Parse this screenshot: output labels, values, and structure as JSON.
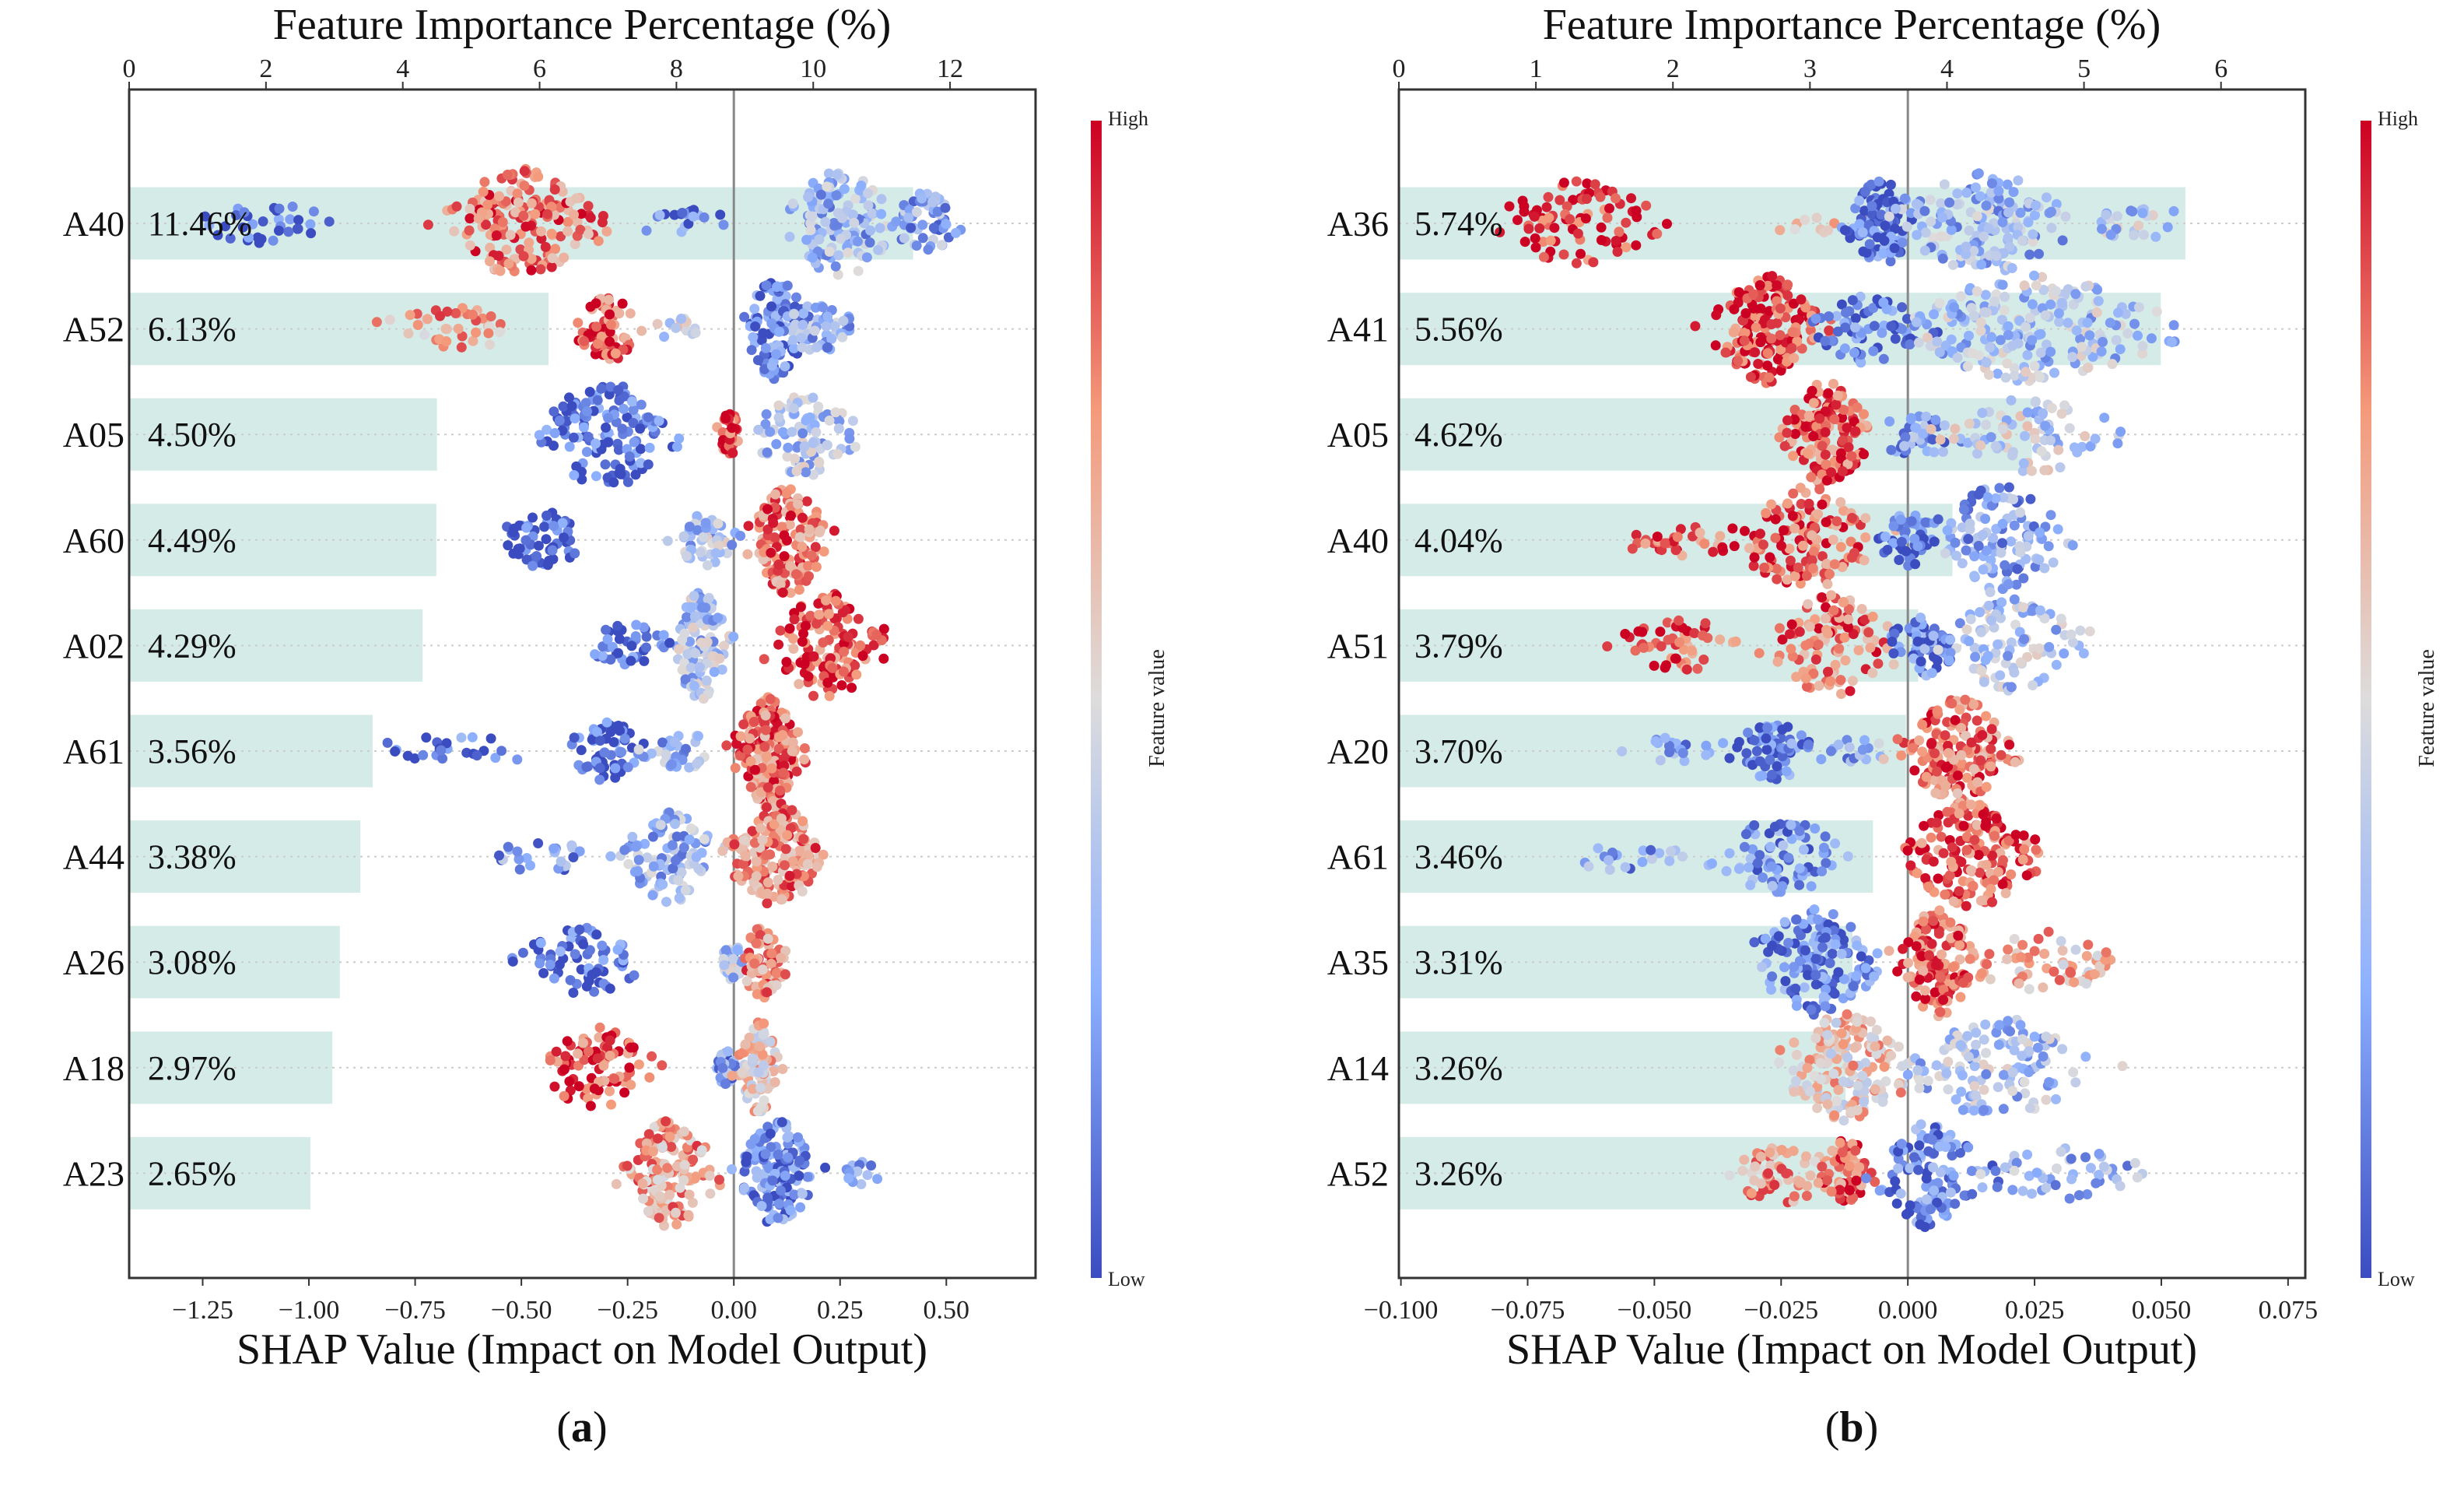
{
  "colors": {
    "bar": "#d5ebe7",
    "low": "#3b4cc0",
    "mid": "#dddcdc",
    "high": "#cc0022",
    "zero_line": "#888888",
    "axis": "#333333"
  },
  "chart_data": [
    {
      "type": "scatter",
      "subtype": "shap-beeswarm-with-importance-bars",
      "panel_label": [
        "(",
        "a",
        ")"
      ],
      "title_top": "Feature Importance Percentage (%)",
      "xlabel": "SHAP Value (Impact on Model Output)",
      "xlim": [
        -1.423,
        0.71
      ],
      "xticks": [
        -1.25,
        -1.0,
        -0.75,
        -0.5,
        -0.25,
        0.0,
        0.25,
        0.5
      ],
      "xtick_labels": [
        "−1.25",
        "−1.00",
        "−0.75",
        "−0.50",
        "−0.25",
        "0.00",
        "0.25",
        "0.50"
      ],
      "top_xlim": [
        0,
        13.25
      ],
      "top_xticks": [
        0,
        2,
        4,
        6,
        8,
        10,
        12
      ],
      "top_xtick_labels": [
        "0",
        "2",
        "4",
        "6",
        "8",
        "10",
        "12"
      ],
      "colorbar": {
        "label": "Feature value",
        "high": "High",
        "low": "Low"
      },
      "features": [
        {
          "name": "A40",
          "importance": 11.46,
          "importance_label": "11.46%",
          "clusters": [
            [
              -1.1,
              0.14,
              35,
              0.05
            ],
            [
              -0.5,
              0.14,
              180,
              0.8
            ],
            [
              -0.12,
              0.08,
              20,
              0.1
            ],
            [
              0.25,
              0.1,
              130,
              0.3
            ],
            [
              0.45,
              0.07,
              60,
              0.25
            ]
          ]
        },
        {
          "name": "A52",
          "importance": 6.13,
          "importance_label": "6.13%",
          "clusters": [
            [
              -0.65,
              0.12,
              40,
              0.7
            ],
            [
              -0.3,
              0.06,
              70,
              0.85
            ],
            [
              -0.12,
              0.04,
              15,
              0.5
            ],
            [
              0.1,
              0.06,
              110,
              0.12
            ],
            [
              0.2,
              0.06,
              50,
              0.3
            ]
          ]
        },
        {
          "name": "A05",
          "importance": 4.5,
          "importance_label": "4.50%",
          "clusters": [
            [
              -0.3,
              0.12,
              130,
              0.08
            ],
            [
              -0.01,
              0.02,
              40,
              0.85
            ],
            [
              0.17,
              0.09,
              90,
              0.35
            ]
          ]
        },
        {
          "name": "A60",
          "importance": 4.49,
          "importance_label": "4.49%",
          "clusters": [
            [
              -0.45,
              0.07,
              60,
              0.08
            ],
            [
              -0.07,
              0.05,
              50,
              0.35
            ],
            [
              0.13,
              0.07,
              150,
              0.8
            ]
          ]
        },
        {
          "name": "A02",
          "importance": 4.29,
          "importance_label": "4.29%",
          "clusters": [
            [
              -0.25,
              0.07,
              40,
              0.08
            ],
            [
              -0.08,
              0.05,
              120,
              0.35
            ],
            [
              0.22,
              0.1,
              140,
              0.85
            ]
          ]
        },
        {
          "name": "A61",
          "importance": 3.56,
          "importance_label": "3.56%",
          "clusters": [
            [
              -0.65,
              0.12,
              25,
              0.1
            ],
            [
              -0.3,
              0.07,
              60,
              0.08
            ],
            [
              -0.12,
              0.06,
              30,
              0.3
            ],
            [
              0.08,
              0.06,
              180,
              0.8
            ]
          ]
        },
        {
          "name": "A44",
          "importance": 3.38,
          "importance_label": "3.38%",
          "clusters": [
            [
              -0.45,
              0.1,
              25,
              0.2
            ],
            [
              -0.15,
              0.08,
              100,
              0.3
            ],
            [
              0.1,
              0.08,
              170,
              0.75
            ]
          ]
        },
        {
          "name": "A26",
          "importance": 3.08,
          "importance_label": "3.08%",
          "clusters": [
            [
              -0.35,
              0.12,
              70,
              0.08
            ],
            [
              0.0,
              0.02,
              30,
              0.35
            ],
            [
              0.07,
              0.04,
              80,
              0.75
            ]
          ]
        },
        {
          "name": "A18",
          "importance": 2.97,
          "importance_label": "2.97%",
          "clusters": [
            [
              -0.33,
              0.1,
              90,
              0.85
            ],
            [
              -0.02,
              0.02,
              30,
              0.2
            ],
            [
              0.06,
              0.04,
              100,
              0.6
            ]
          ]
        },
        {
          "name": "A23",
          "importance": 2.65,
          "importance_label": "2.65%",
          "clusters": [
            [
              -0.15,
              0.08,
              150,
              0.7
            ],
            [
              0.1,
              0.07,
              150,
              0.15
            ],
            [
              0.3,
              0.05,
              15,
              0.3
            ]
          ]
        }
      ]
    },
    {
      "type": "scatter",
      "subtype": "shap-beeswarm-with-importance-bars",
      "panel_label": [
        "(",
        "b",
        ")"
      ],
      "title_top": "Feature Importance Percentage (%)",
      "xlabel": "SHAP Value (Impact on Model Output)",
      "xlim": [
        -0.1004,
        0.0784
      ],
      "xticks": [
        -0.1,
        -0.075,
        -0.05,
        -0.025,
        0.0,
        0.025,
        0.05,
        0.075
      ],
      "xtick_labels": [
        "−0.100",
        "−0.075",
        "−0.050",
        "−0.025",
        "0.000",
        "0.025",
        "0.050",
        "0.075"
      ],
      "top_xlim": [
        0,
        6.615
      ],
      "top_xticks": [
        0,
        1,
        2,
        3,
        4,
        5,
        6
      ],
      "top_xtick_labels": [
        "0",
        "1",
        "2",
        "3",
        "4",
        "5",
        "6"
      ],
      "colorbar": {
        "label": "Feature value",
        "high": "High",
        "low": "Low"
      },
      "features": [
        {
          "name": "A36",
          "importance": 5.74,
          "importance_label": "5.74%",
          "clusters": [
            [
              -0.065,
              0.012,
              90,
              0.9
            ],
            [
              -0.02,
              0.008,
              10,
              0.7
            ],
            [
              -0.005,
              0.005,
              100,
              0.1
            ],
            [
              0.015,
              0.012,
              150,
              0.3
            ],
            [
              0.045,
              0.01,
              25,
              0.35
            ]
          ]
        },
        {
          "name": "A41",
          "importance": 5.56,
          "importance_label": "5.56%",
          "clusters": [
            [
              -0.028,
              0.008,
              170,
              0.9
            ],
            [
              -0.008,
              0.008,
              70,
              0.1
            ],
            [
              0.025,
              0.02,
              220,
              0.35
            ]
          ]
        },
        {
          "name": "A05",
          "importance": 4.62,
          "importance_label": "4.62%",
          "clusters": [
            [
              -0.016,
              0.006,
              160,
              0.85
            ],
            [
              0.002,
              0.008,
              40,
              0.2
            ],
            [
              0.025,
              0.012,
              80,
              0.4
            ]
          ]
        },
        {
          "name": "A40",
          "importance": 4.04,
          "importance_label": "4.04%",
          "clusters": [
            [
              -0.045,
              0.008,
              30,
              0.85
            ],
            [
              -0.02,
              0.01,
              130,
              0.85
            ],
            [
              0.0,
              0.005,
              50,
              0.1
            ],
            [
              0.018,
              0.01,
              120,
              0.25
            ]
          ]
        },
        {
          "name": "A51",
          "importance": 3.79,
          "importance_label": "3.79%",
          "clusters": [
            [
              -0.045,
              0.01,
              50,
              0.85
            ],
            [
              -0.015,
              0.01,
              110,
              0.8
            ],
            [
              0.003,
              0.005,
              60,
              0.15
            ],
            [
              0.02,
              0.012,
              100,
              0.35
            ]
          ]
        },
        {
          "name": "A20",
          "importance": 3.7,
          "importance_label": "3.70%",
          "clusters": [
            [
              -0.045,
              0.01,
              20,
              0.2
            ],
            [
              -0.027,
              0.006,
              60,
              0.1
            ],
            [
              -0.012,
              0.008,
              20,
              0.25
            ],
            [
              0.01,
              0.008,
              170,
              0.8
            ]
          ]
        },
        {
          "name": "A61",
          "importance": 3.46,
          "importance_label": "3.46%",
          "clusters": [
            [
              -0.055,
              0.01,
              20,
              0.2
            ],
            [
              -0.025,
              0.01,
              80,
              0.15
            ],
            [
              0.012,
              0.01,
              170,
              0.85
            ]
          ]
        },
        {
          "name": "A35",
          "importance": 3.31,
          "importance_label": "3.31%",
          "clusters": [
            [
              -0.018,
              0.01,
              150,
              0.15
            ],
            [
              0.006,
              0.006,
              130,
              0.85
            ],
            [
              0.028,
              0.012,
              60,
              0.65
            ]
          ]
        },
        {
          "name": "A14",
          "importance": 3.26,
          "importance_label": "3.26%",
          "clusters": [
            [
              -0.012,
              0.01,
              170,
              0.6
            ],
            [
              0.018,
              0.013,
              130,
              0.35
            ]
          ]
        },
        {
          "name": "A52",
          "importance": 3.26,
          "importance_label": "3.26%",
          "clusters": [
            [
              -0.025,
              0.009,
              60,
              0.7
            ],
            [
              -0.012,
              0.004,
              70,
              0.85
            ],
            [
              0.004,
              0.008,
              120,
              0.15
            ],
            [
              0.03,
              0.012,
              50,
              0.3
            ]
          ]
        }
      ]
    }
  ]
}
